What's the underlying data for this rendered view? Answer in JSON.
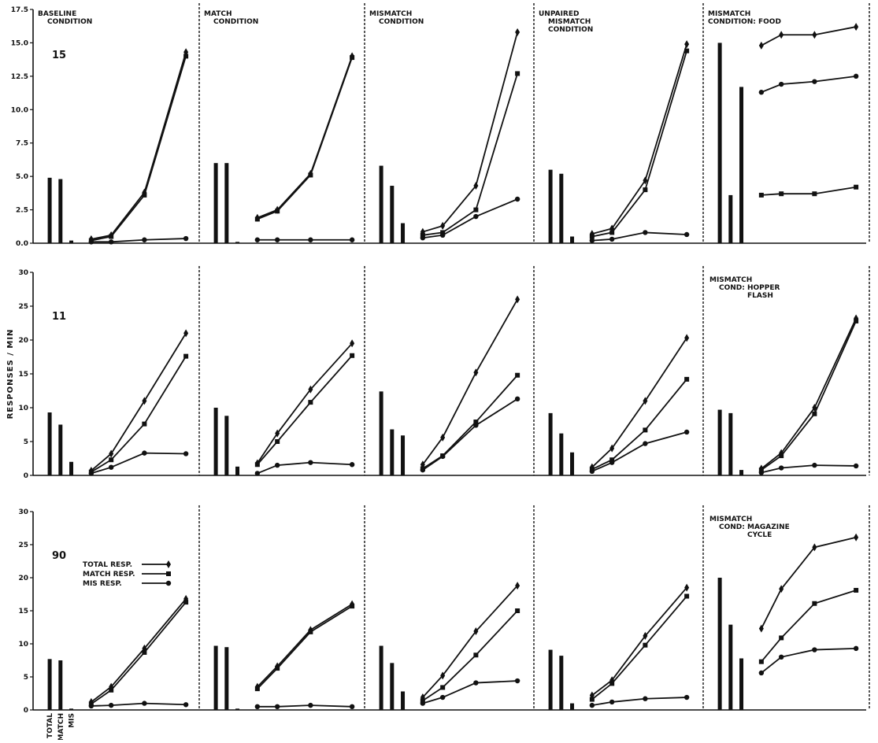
{
  "chart_data": {
    "type": "line",
    "ylabel": "RESPONSES / MIN",
    "bar_labels": [
      "TOTAL",
      "MATCH",
      "MIS"
    ],
    "legend": [
      {
        "label": "TOTAL RESP.",
        "marker": "diamond"
      },
      {
        "label": "MATCH RESP.",
        "marker": "square"
      },
      {
        "label": "MIS RESP.",
        "marker": "circle"
      }
    ],
    "column_titles": [
      [
        "BASELINE",
        "CONDITION"
      ],
      [
        "MATCH",
        "CONDITION"
      ],
      [
        "MISMATCH",
        "CONDITION"
      ],
      [
        "UNPAIRED",
        "MISMATCH",
        "CONDITION"
      ],
      [
        "MISMATCH",
        "CONDITION: FOOD"
      ]
    ],
    "rows": [
      {
        "subject": "15",
        "ylim": [
          0,
          17.5
        ],
        "yticks": [
          "0.0",
          "2.5",
          "5.0",
          "7.5",
          "10.0",
          "12.5",
          "15.0",
          "17.5"
        ],
        "panels": [
          {
            "bars": [
              4.9,
              4.8,
              0.2
            ],
            "series": [
              [
                0.3,
                0.6,
                3.8,
                14.3
              ],
              [
                0.2,
                0.5,
                3.6,
                14.0
              ],
              [
                0.1,
                0.1,
                0.25,
                0.35
              ]
            ]
          },
          {
            "bars": [
              6.0,
              6.0,
              0.1
            ],
            "series": [
              [
                1.9,
                2.5,
                5.2,
                14.0
              ],
              [
                1.8,
                2.4,
                5.1,
                13.9
              ],
              [
                0.25,
                0.25,
                0.25,
                0.25
              ]
            ]
          },
          {
            "bars": [
              5.8,
              4.3,
              1.5
            ],
            "series": [
              [
                0.85,
                1.3,
                4.3,
                15.8
              ],
              [
                0.6,
                0.8,
                2.5,
                12.7
              ],
              [
                0.4,
                0.6,
                2.0,
                3.3
              ]
            ]
          },
          {
            "bars": [
              5.5,
              5.2,
              0.5
            ],
            "series": [
              [
                0.7,
                1.1,
                4.7,
                14.9
              ],
              [
                0.5,
                0.8,
                4.0,
                14.4
              ],
              [
                0.2,
                0.3,
                0.8,
                0.65
              ]
            ]
          },
          {
            "bars": [
              15.0,
              3.6,
              11.7
            ],
            "series": [
              [
                14.8,
                15.6,
                15.6,
                16.2
              ],
              [
                3.6,
                3.7,
                3.7,
                4.2
              ],
              [
                11.3,
                11.9,
                12.1,
                12.5
              ]
            ]
          }
        ]
      },
      {
        "subject": "11",
        "ylim": [
          0,
          30
        ],
        "yticks": [
          "0",
          "5",
          "10",
          "15",
          "20",
          "25",
          "30"
        ],
        "panels": [
          {
            "bars": [
              9.3,
              7.5,
              2.0
            ],
            "series": [
              [
                0.7,
                3.2,
                11.0,
                21.0
              ],
              [
                0.5,
                2.3,
                7.6,
                17.6
              ],
              [
                0.3,
                1.2,
                3.3,
                3.2
              ]
            ]
          },
          {
            "bars": [
              10.0,
              8.8,
              1.3
            ],
            "series": [
              [
                1.8,
                6.2,
                12.7,
                19.5
              ],
              [
                1.6,
                5.0,
                10.8,
                17.7
              ],
              [
                0.3,
                1.5,
                1.9,
                1.6
              ]
            ]
          },
          {
            "bars": [
              12.4,
              6.8,
              5.9
            ],
            "series": [
              [
                1.6,
                5.6,
                15.2,
                26.0
              ],
              [
                1.0,
                2.9,
                7.9,
                14.8
              ],
              [
                0.8,
                2.8,
                7.4,
                11.3
              ]
            ]
          },
          {
            "bars": [
              9.2,
              6.2,
              3.4
            ],
            "series": [
              [
                1.2,
                4.0,
                11.0,
                20.3
              ],
              [
                0.9,
                2.3,
                6.7,
                14.2
              ],
              [
                0.6,
                1.9,
                4.7,
                6.4
              ]
            ]
          },
          {
            "bars": [
              9.7,
              9.2,
              0.8
            ],
            "series": [
              [
                1.0,
                3.3,
                10.0,
                23.2
              ],
              [
                0.8,
                2.9,
                9.1,
                22.8
              ],
              [
                0.4,
                1.1,
                1.5,
                1.4
              ]
            ]
          }
        ]
      },
      {
        "subject": "90",
        "ylim": [
          0,
          30
        ],
        "yticks": [
          "0",
          "5",
          "10",
          "15",
          "20",
          "25",
          "30"
        ],
        "panels": [
          {
            "bars": [
              7.7,
              7.5,
              0.2
            ],
            "series": [
              [
                1.2,
                3.5,
                9.3,
                16.8
              ],
              [
                0.9,
                3.0,
                8.7,
                16.3
              ],
              [
                0.6,
                0.7,
                1.0,
                0.8
              ]
            ]
          },
          {
            "bars": [
              9.7,
              9.5,
              0.2
            ],
            "series": [
              [
                3.5,
                6.6,
                12.1,
                16.0
              ],
              [
                3.2,
                6.3,
                11.8,
                15.7
              ],
              [
                0.5,
                0.5,
                0.7,
                0.5
              ]
            ]
          },
          {
            "bars": [
              9.7,
              7.1,
              2.8
            ],
            "series": [
              [
                1.9,
                5.2,
                11.9,
                18.8
              ],
              [
                1.4,
                3.4,
                8.3,
                15.0
              ],
              [
                1.0,
                1.9,
                4.1,
                4.4
              ]
            ]
          },
          {
            "bars": [
              9.1,
              8.2,
              1.0
            ],
            "series": [
              [
                2.2,
                4.5,
                11.2,
                18.5
              ],
              [
                1.6,
                4.0,
                9.8,
                17.2
              ],
              [
                0.7,
                1.2,
                1.7,
                1.9
              ]
            ]
          },
          {
            "bars": [
              20.0,
              12.9,
              7.8
            ],
            "series": [
              [
                12.3,
                18.3,
                24.6,
                26.1
              ],
              [
                7.3,
                10.9,
                16.1,
                18.1
              ],
              [
                5.6,
                8.0,
                9.1,
                9.3
              ]
            ]
          }
        ]
      }
    ],
    "row_panel_titles": [
      null,
      [
        null,
        null,
        null,
        null,
        [
          "MISMATCH",
          "COND: HOPPER",
          "FLASH"
        ]
      ],
      [
        null,
        null,
        null,
        null,
        [
          "MISMATCH",
          "COND: MAGAZINE",
          "CYCLE"
        ]
      ]
    ]
  }
}
